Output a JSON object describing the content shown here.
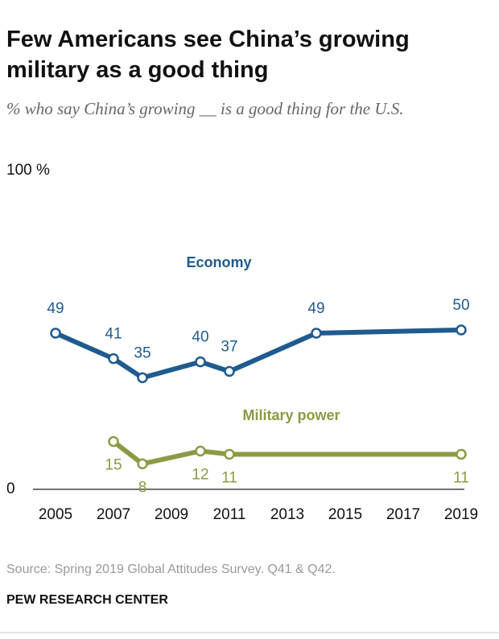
{
  "chart_data": {
    "type": "line",
    "title": "Few Americans see China’s growing military as a good thing",
    "subtitle": "% who say China’s growing __ is a good thing for the U.S.",
    "xlim": [
      2005,
      2019
    ],
    "xticks": [
      2005,
      2007,
      2009,
      2011,
      2013,
      2015,
      2017,
      2019
    ],
    "ylim": [
      0,
      100
    ],
    "yticks": [
      0,
      {
        "value": 100,
        "label": "100 %"
      }
    ],
    "series": [
      {
        "name": "Economy",
        "color": "#1f5b8e",
        "x": [
          2005,
          2007,
          2008,
          2010,
          2011,
          2014,
          2019
        ],
        "values": [
          49,
          41,
          35,
          40,
          37,
          49,
          50
        ]
      },
      {
        "name": "Military power",
        "color": "#8c9a45",
        "x": [
          2007,
          2008,
          2010,
          2011,
          2019
        ],
        "values": [
          15,
          8,
          12,
          11,
          11
        ]
      }
    ],
    "source": "Source: Spring 2019 Global Attitudes Survey. Q41 & Q42.",
    "credit": "PEW RESEARCH CENTER"
  }
}
